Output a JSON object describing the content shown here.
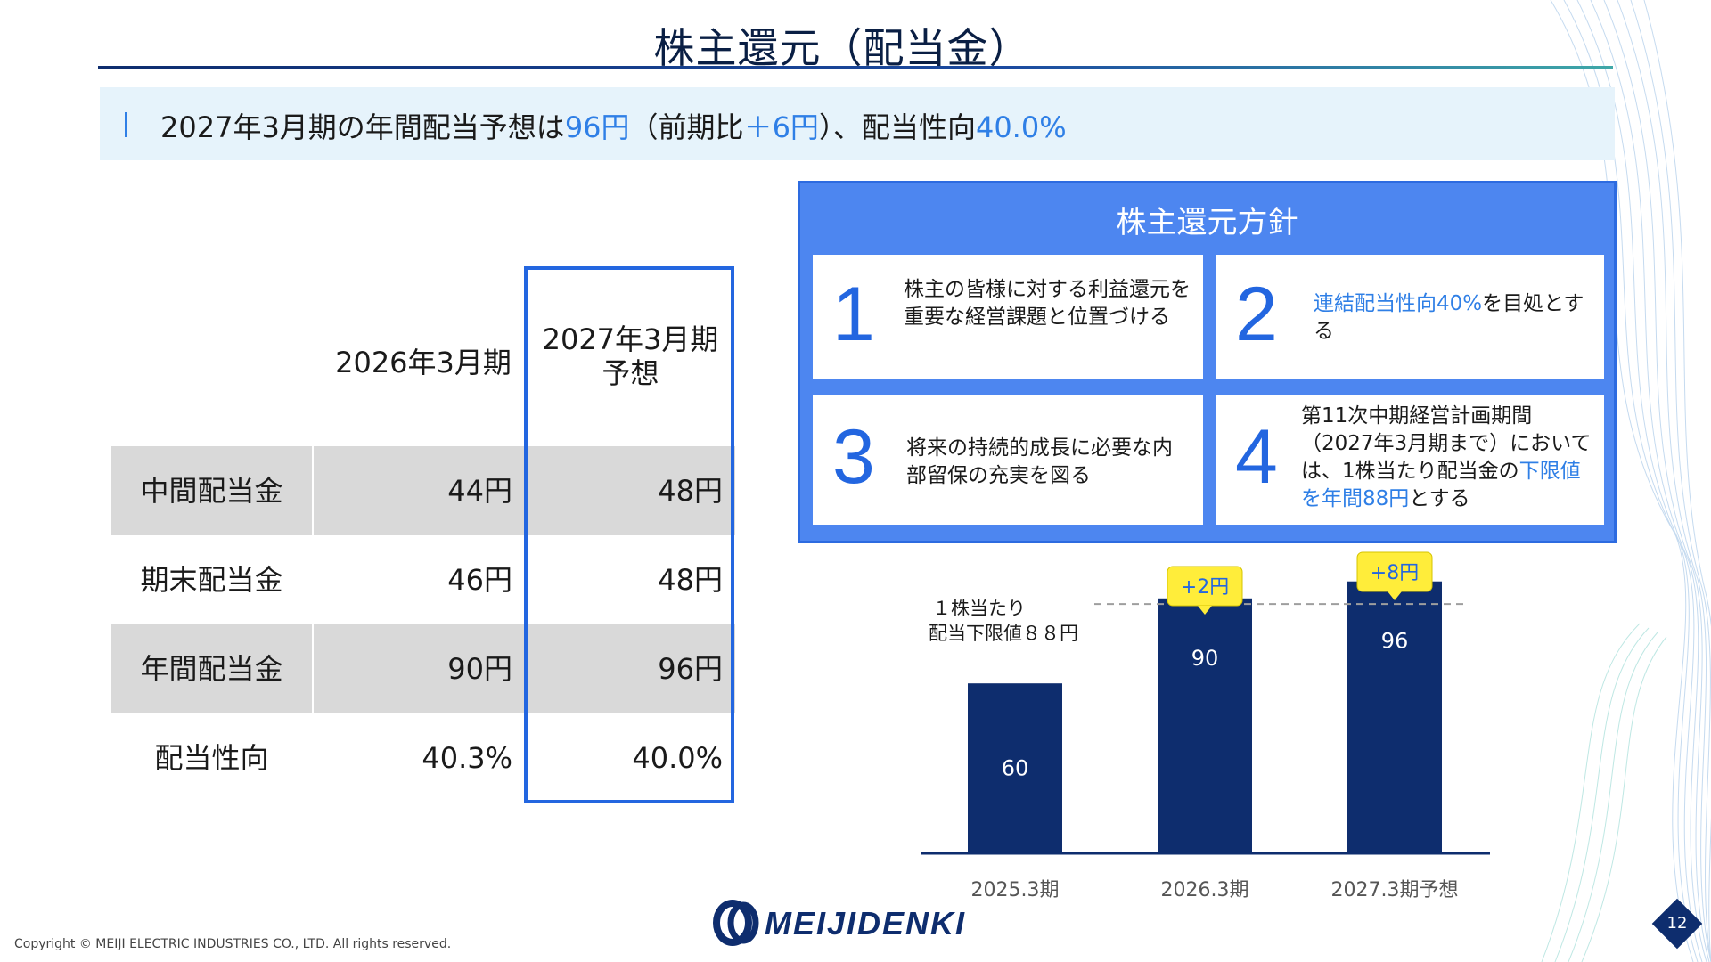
{
  "title": "株主還元（配当金）",
  "banner": {
    "part1": "2027年3月期の年間配当予想は",
    "amount": "96円",
    "part2": "（前期比",
    "change": "＋6円",
    "part3": "）、配当性向",
    "payout": "40.0%"
  },
  "table": {
    "col1_header": "2026年3月期",
    "col2_header_line1": "2027年3月期",
    "col2_header_line2": "予想",
    "rows": [
      {
        "label": "中間配当金",
        "v1": "44円",
        "v2": "48円"
      },
      {
        "label": "期末配当金",
        "v1": "46円",
        "v2": "48円"
      },
      {
        "label": "年間配当金",
        "v1": "90円",
        "v2": "96円"
      },
      {
        "label": "配当性向",
        "v1": "40.3%",
        "v2": "40.0%"
      }
    ]
  },
  "policy": {
    "title": "株主還元方針",
    "items": [
      {
        "num": "1",
        "text": "株主の皆様に対する利益還元を重要な経営課題と位置づける"
      },
      {
        "num": "2",
        "text_hl": "連結配当性向40%",
        "text_rest": "を目処とする"
      },
      {
        "num": "3",
        "text": "将来の持続的成長に必要な内部留保の充実を図る"
      },
      {
        "num": "4",
        "text_a": "第11次中期経営計画期間（2027年3月期まで）においては、1株当たり配当金の",
        "text_hl": "下限値を年間88円",
        "text_b": "とする"
      }
    ]
  },
  "chart_data": {
    "type": "bar",
    "categories": [
      "2025.3期",
      "2026.3期",
      "2027.3期予想"
    ],
    "values": [
      60,
      90,
      96
    ],
    "ylim": [
      0,
      100
    ],
    "bar_color": "#0e2d6e",
    "floor_label_line1": "１株当たり",
    "floor_label_line2": "配当下限値８８円",
    "floor_value": 88,
    "callouts": [
      "+2円",
      "+8円"
    ]
  },
  "footer": {
    "copyright": "Copyright © MEIJI ELECTRIC INDUSTRIES CO., LTD. All rights reserved.",
    "logo": "MEIJIDENKI",
    "page": "12"
  }
}
